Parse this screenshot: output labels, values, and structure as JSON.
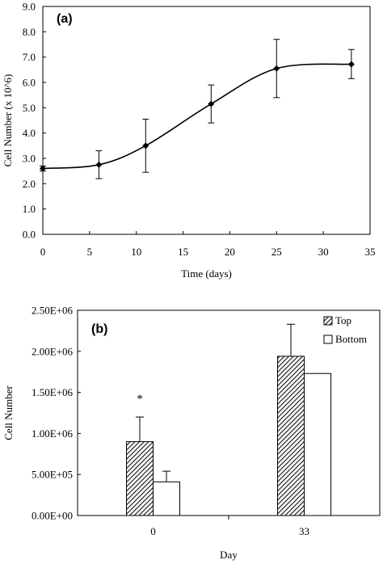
{
  "chart_data": [
    {
      "type": "line",
      "panel_label": "(a)",
      "title": "",
      "xlabel": "Time (days)",
      "ylabel": "Cell Number (x 10^6)",
      "xlim": [
        0,
        35
      ],
      "ylim": [
        0,
        9
      ],
      "xticks": [
        0,
        5,
        10,
        15,
        20,
        25,
        30,
        35
      ],
      "xtick_labels": [
        "0",
        "5",
        "10",
        "15",
        "20",
        "25",
        "30",
        "35"
      ],
      "yticks": [
        0,
        1,
        2,
        3,
        4,
        5,
        6,
        7,
        8,
        9
      ],
      "ytick_labels": [
        "0.0",
        "1.0",
        "2.0",
        "3.0",
        "4.0",
        "5.0",
        "6.0",
        "7.0",
        "8.0",
        "9.0"
      ],
      "grid": false,
      "series": [
        {
          "x": [
            0,
            6,
            11,
            18,
            25,
            33
          ],
          "y": [
            2.6,
            2.75,
            3.5,
            5.15,
            6.55,
            6.72
          ],
          "err_upper": [
            2.7,
            3.3,
            4.55,
            5.9,
            7.7,
            7.3
          ],
          "err_lower": [
            2.5,
            2.2,
            2.45,
            4.4,
            5.4,
            6.15
          ]
        }
      ]
    },
    {
      "type": "bar",
      "panel_label": "(b)",
      "title": "",
      "xlabel": "Day",
      "ylabel": "Cell Number",
      "categories": [
        "0",
        "33"
      ],
      "ylim": [
        0,
        2500000
      ],
      "yticks": [
        0,
        500000,
        1000000,
        1500000,
        2000000,
        2500000
      ],
      "ytick_labels": [
        "0.00E+00",
        "5.00E+05",
        "1.00E+06",
        "1.50E+06",
        "2.00E+06",
        "2.50E+06"
      ],
      "grid": false,
      "legend": "top-right",
      "series": [
        {
          "name": "Top",
          "values": [
            900000,
            1940000
          ],
          "err_upper": [
            1200000,
            2330000
          ],
          "fill": "hatched"
        },
        {
          "name": "Bottom",
          "values": [
            410000,
            1730000
          ],
          "err_upper": [
            540000,
            null
          ],
          "fill": "white"
        }
      ],
      "annotations": [
        {
          "text": "*",
          "category": "0"
        }
      ]
    }
  ]
}
